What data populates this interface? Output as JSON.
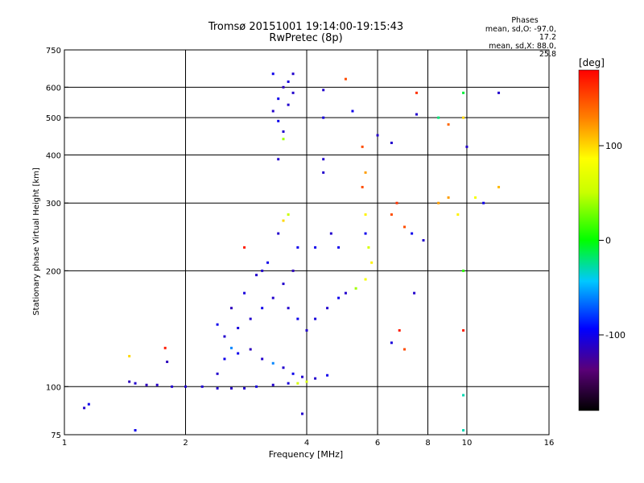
{
  "header": {
    "title": "Tromsø 20151001 19:14:00-19:15:43",
    "subtitle": "RwPretec (8p)"
  },
  "stats": {
    "heading": "Phases",
    "line1": "mean, sd,O: -97.0, 17.2",
    "line2": "mean, sd,X: 88.0, 25.8"
  },
  "colorbar": {
    "label": "[deg]",
    "ticks": [
      {
        "value": 100,
        "label": "100"
      },
      {
        "value": 0,
        "label": "0"
      },
      {
        "value": -100,
        "label": "-100"
      }
    ],
    "range": [
      -180,
      180
    ]
  },
  "chart_data": {
    "type": "scatter",
    "title": "Tromsø 20151001 19:14:00-19:15:43",
    "subtitle": "RwPretec (8p)",
    "xlabel": "Frequency [MHz]",
    "ylabel": "Stationary phase Virtual Height [km]",
    "xscale": "log",
    "yscale": "log",
    "xlim": [
      1,
      16
    ],
    "ylim": [
      75,
      750
    ],
    "xticks": [
      {
        "value": 1,
        "label": "1"
      },
      {
        "value": 2,
        "label": "2"
      },
      {
        "value": 4,
        "label": "4"
      },
      {
        "value": 6,
        "label": "6"
      },
      {
        "value": 8,
        "label": "8"
      },
      {
        "value": 10,
        "label": "10"
      },
      {
        "value": 16,
        "label": "16"
      }
    ],
    "yticks": [
      {
        "value": 75,
        "label": "75"
      },
      {
        "value": 100,
        "label": "100"
      },
      {
        "value": 200,
        "label": "200"
      },
      {
        "value": 300,
        "label": "300"
      },
      {
        "value": 400,
        "label": "400"
      },
      {
        "value": 500,
        "label": "500"
      },
      {
        "value": 600,
        "label": "600"
      },
      {
        "value": 750,
        "label": "750"
      }
    ],
    "grid": true,
    "color_encoding": "phase in degrees (colorbar)",
    "points": [
      [
        1.12,
        88,
        -110
      ],
      [
        1.15,
        90,
        -100
      ],
      [
        1.45,
        103,
        -115
      ],
      [
        1.5,
        102,
        -110
      ],
      [
        1.6,
        101,
        -115
      ],
      [
        1.7,
        101,
        -112
      ],
      [
        1.85,
        100,
        -110
      ],
      [
        2.0,
        100,
        -110
      ],
      [
        2.2,
        100,
        -108
      ],
      [
        2.4,
        99,
        -110
      ],
      [
        2.6,
        99,
        -112
      ],
      [
        2.8,
        99,
        -110
      ],
      [
        3.0,
        100,
        -105
      ],
      [
        3.3,
        101,
        -110
      ],
      [
        3.6,
        102,
        -105
      ],
      [
        1.5,
        77,
        -100
      ],
      [
        1.45,
        120,
        100
      ],
      [
        1.78,
        126,
        170
      ],
      [
        1.8,
        116,
        -115
      ],
      [
        2.4,
        108,
        -110
      ],
      [
        2.5,
        118,
        -100
      ],
      [
        2.6,
        126,
        -60
      ],
      [
        2.7,
        122,
        -100
      ],
      [
        2.9,
        125,
        -115
      ],
      [
        3.1,
        118,
        -110
      ],
      [
        3.3,
        115,
        -60
      ],
      [
        3.5,
        112,
        -110
      ],
      [
        3.7,
        108,
        -100
      ],
      [
        3.9,
        106,
        -110
      ],
      [
        4.2,
        105,
        -110
      ],
      [
        4.5,
        107,
        -100
      ],
      [
        2.5,
        135,
        -110
      ],
      [
        2.7,
        142,
        -105
      ],
      [
        2.9,
        150,
        -110
      ],
      [
        3.1,
        160,
        -100
      ],
      [
        3.3,
        170,
        -110
      ],
      [
        3.5,
        185,
        -110
      ],
      [
        3.7,
        200,
        -115
      ],
      [
        3.8,
        230,
        -100
      ],
      [
        3.6,
        280,
        50
      ],
      [
        3.5,
        270,
        100
      ],
      [
        3.4,
        250,
        -110
      ],
      [
        3.2,
        210,
        -100
      ],
      [
        3.0,
        195,
        -110
      ],
      [
        2.8,
        175,
        -105
      ],
      [
        2.6,
        160,
        -115
      ],
      [
        2.4,
        145,
        -100
      ],
      [
        3.6,
        160,
        -110
      ],
      [
        3.8,
        150,
        -100
      ],
      [
        4.0,
        140,
        -110
      ],
      [
        4.2,
        150,
        -105
      ],
      [
        4.5,
        160,
        -110
      ],
      [
        4.8,
        170,
        -100
      ],
      [
        5.0,
        175,
        -110
      ],
      [
        5.3,
        180,
        40
      ],
      [
        5.6,
        190,
        80
      ],
      [
        5.8,
        210,
        90
      ],
      [
        5.7,
        230,
        60
      ],
      [
        5.6,
        250,
        -100
      ],
      [
        5.6,
        280,
        90
      ],
      [
        5.5,
        330,
        150
      ],
      [
        5.6,
        360,
        120
      ],
      [
        6.5,
        280,
        150
      ],
      [
        6.7,
        300,
        160
      ],
      [
        7.0,
        260,
        150
      ],
      [
        7.3,
        250,
        -100
      ],
      [
        7.8,
        240,
        -110
      ],
      [
        8.5,
        300,
        120
      ],
      [
        9.0,
        310,
        120
      ],
      [
        9.5,
        280,
        90
      ],
      [
        10.5,
        310,
        80
      ],
      [
        11.0,
        300,
        -100
      ],
      [
        12.0,
        330,
        110
      ],
      [
        3.3,
        520,
        -110
      ],
      [
        3.4,
        560,
        -100
      ],
      [
        3.5,
        600,
        -115
      ],
      [
        3.6,
        620,
        -105
      ],
      [
        3.7,
        580,
        -110
      ],
      [
        3.5,
        460,
        -110
      ],
      [
        3.3,
        650,
        -100
      ],
      [
        3.7,
        650,
        -110
      ],
      [
        3.4,
        490,
        -100
      ],
      [
        3.6,
        540,
        -110
      ],
      [
        3.5,
        440,
        40
      ],
      [
        3.4,
        390,
        -110
      ],
      [
        4.4,
        590,
        -110
      ],
      [
        4.4,
        500,
        -105
      ],
      [
        4.4,
        390,
        -110
      ],
      [
        4.4,
        360,
        -110
      ],
      [
        5.0,
        630,
        150
      ],
      [
        5.2,
        520,
        -100
      ],
      [
        5.5,
        420,
        150
      ],
      [
        6.0,
        450,
        -110
      ],
      [
        6.5,
        430,
        -110
      ],
      [
        7.5,
        580,
        160
      ],
      [
        7.5,
        510,
        -110
      ],
      [
        8.5,
        500,
        -20
      ],
      [
        9.0,
        480,
        140
      ],
      [
        9.8,
        580,
        -10
      ],
      [
        9.8,
        500,
        100
      ],
      [
        10,
        420,
        -110
      ],
      [
        12,
        580,
        -110
      ],
      [
        7.4,
        175,
        -110
      ],
      [
        6.5,
        130,
        -105
      ],
      [
        6.8,
        140,
        170
      ],
      [
        7.0,
        125,
        150
      ],
      [
        9.8,
        140,
        170
      ],
      [
        9.8,
        200,
        10
      ],
      [
        9.8,
        95,
        -30
      ],
      [
        9.8,
        77,
        -30
      ],
      [
        4.0,
        103,
        60
      ],
      [
        3.8,
        102,
        60
      ],
      [
        3.9,
        85,
        -110
      ],
      [
        2.8,
        230,
        170
      ],
      [
        3.1,
        200,
        -110
      ],
      [
        4.2,
        230,
        -100
      ],
      [
        4.6,
        250,
        -110
      ],
      [
        4.8,
        230,
        -100
      ]
    ]
  }
}
